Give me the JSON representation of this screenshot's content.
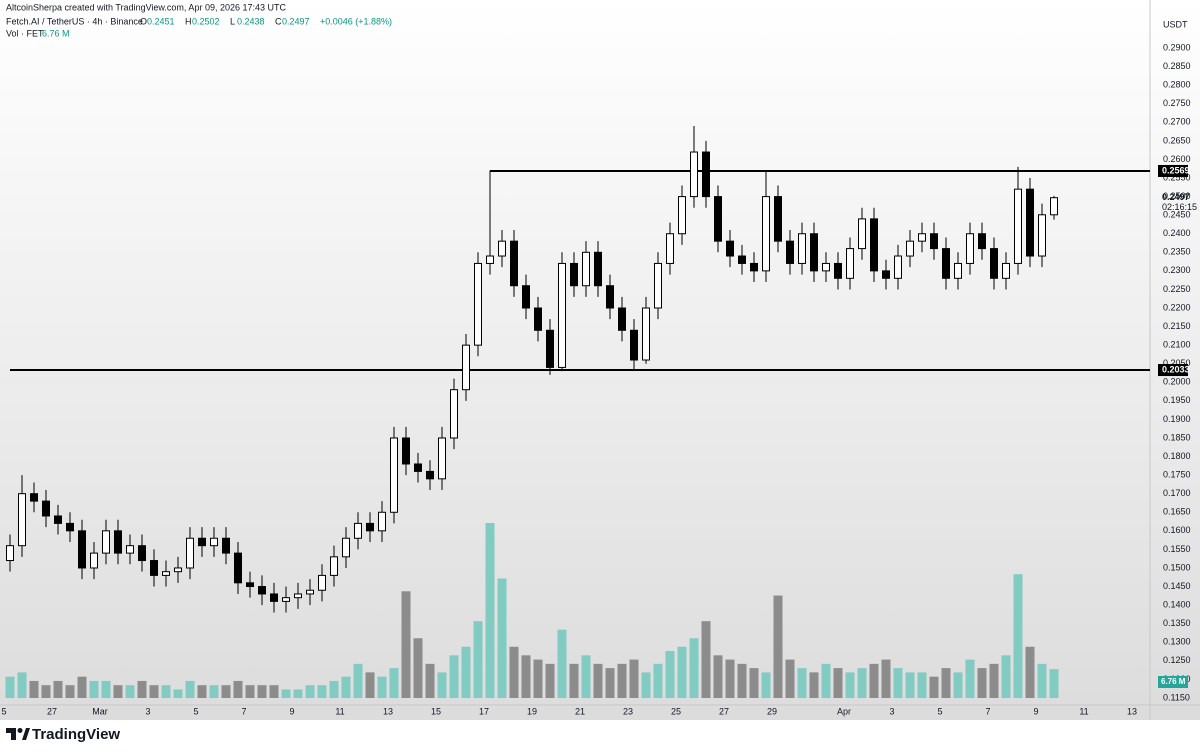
{
  "header": {
    "credit": "AltcoinSherpa created with TradingView.com, Apr 09, 2026 17:43 UTC",
    "symbol": "Fetch.AI / TetherUS · 4h · Binance",
    "ohlc": [
      {
        "label": "O",
        "value": 0.2451
      },
      {
        "label": "H",
        "value": 0.2502
      },
      {
        "label": "L",
        "value": 0.2438
      },
      {
        "label": "C",
        "value": 0.2497
      }
    ],
    "change": "+0.0046 (+1.88%)",
    "vol_label": "Vol · FET",
    "vol_value": "6.76 M",
    "currency": "USDT",
    "countdown": "02:16:15"
  },
  "chart_data": {
    "type": "candlestick",
    "grid": false,
    "up_color": "#ffffff",
    "down_color": "#000000",
    "wick_color": "#000000",
    "volume_up_color": "#82cbc3",
    "volume_down_color": "#8c8c8c",
    "level_color": "#000000",
    "ylim": [
      0.1131,
      0.2989
    ],
    "yticks": [
      {
        "value": 0.115,
        "label": "0.1150"
      },
      {
        "value": 0.12,
        "label": "0.1200"
      },
      {
        "value": 0.125,
        "label": "0.1250"
      },
      {
        "value": 0.13,
        "label": "0.1300"
      },
      {
        "value": 0.135,
        "label": "0.1350"
      },
      {
        "value": 0.14,
        "label": "0.1400"
      },
      {
        "value": 0.145,
        "label": "0.1450"
      },
      {
        "value": 0.15,
        "label": "0.1500"
      },
      {
        "value": 0.155,
        "label": "0.1550"
      },
      {
        "value": 0.16,
        "label": "0.1600"
      },
      {
        "value": 0.165,
        "label": "0.1650"
      },
      {
        "value": 0.17,
        "label": "0.1700"
      },
      {
        "value": 0.175,
        "label": "0.1750"
      },
      {
        "value": 0.18,
        "label": "0.1800"
      },
      {
        "value": 0.185,
        "label": "0.1850"
      },
      {
        "value": 0.19,
        "label": "0.1900"
      },
      {
        "value": 0.195,
        "label": "0.1950"
      },
      {
        "value": 0.2,
        "label": "0.2000"
      },
      {
        "value": 0.205,
        "label": "0.2050"
      },
      {
        "value": 0.21,
        "label": "0.2100"
      },
      {
        "value": 0.215,
        "label": "0.2150"
      },
      {
        "value": 0.22,
        "label": "0.2200"
      },
      {
        "value": 0.225,
        "label": "0.2250"
      },
      {
        "value": 0.23,
        "label": "0.2300"
      },
      {
        "value": 0.235,
        "label": "0.2350"
      },
      {
        "value": 0.24,
        "label": "0.2400"
      },
      {
        "value": 0.245,
        "label": "0.2450"
      },
      {
        "value": 0.25,
        "label": "0.2500"
      },
      {
        "value": 0.255,
        "label": "0.2550"
      },
      {
        "value": 0.26,
        "label": "0.2600"
      },
      {
        "value": 0.265,
        "label": "0.2650"
      },
      {
        "value": 0.27,
        "label": "0.2700"
      },
      {
        "value": 0.275,
        "label": "0.2750"
      },
      {
        "value": 0.28,
        "label": "0.2800"
      },
      {
        "value": 0.285,
        "label": "0.2850"
      },
      {
        "value": 0.29,
        "label": "0.2900"
      }
    ],
    "categories": [
      "5",
      null,
      null,
      null,
      "27",
      null,
      null,
      null,
      "Mar",
      null,
      null,
      null,
      "3",
      null,
      null,
      null,
      "5",
      null,
      null,
      null,
      "7",
      null,
      null,
      null,
      "9",
      null,
      null,
      null,
      "11",
      null,
      null,
      null,
      "13",
      null,
      null,
      null,
      "15",
      null,
      null,
      null,
      "17",
      null,
      null,
      null,
      "19",
      null,
      null,
      null,
      "21",
      null,
      null,
      null,
      "23",
      null,
      null,
      null,
      "25",
      null,
      null,
      null,
      "27",
      null,
      null,
      null,
      "29",
      null,
      null,
      null,
      null,
      null,
      "Apr",
      null,
      null,
      null,
      "3",
      null,
      null,
      null,
      "5",
      null,
      null,
      null,
      "7",
      null,
      null,
      null,
      "9",
      null,
      null,
      null,
      "11",
      null,
      null,
      null,
      "13",
      null
    ],
    "open": [
      0.152,
      0.156,
      0.17,
      0.168,
      0.164,
      0.162,
      0.16,
      0.15,
      0.154,
      0.16,
      0.154,
      0.156,
      0.152,
      0.148,
      0.149,
      0.15,
      0.158,
      0.156,
      0.158,
      0.154,
      0.146,
      0.145,
      0.143,
      0.141,
      0.142,
      0.143,
      0.144,
      0.148,
      0.153,
      0.158,
      0.162,
      0.16,
      0.165,
      0.185,
      0.178,
      0.176,
      0.174,
      0.185,
      0.198,
      0.21,
      0.232,
      0.234,
      0.238,
      0.226,
      0.22,
      0.214,
      0.204,
      0.232,
      0.226,
      0.235,
      0.226,
      0.22,
      0.214,
      0.206,
      0.22,
      0.232,
      0.24,
      0.25,
      0.262,
      0.25,
      0.238,
      0.234,
      0.232,
      0.23,
      0.25,
      0.238,
      0.232,
      0.24,
      0.23,
      0.232,
      0.228,
      0.236,
      0.244,
      0.23,
      0.228,
      0.234,
      0.238,
      0.24,
      0.236,
      0.228,
      0.232,
      0.24,
      0.236,
      0.228,
      0.232,
      0.252,
      0.234,
      0.2451,
      null,
      null,
      null,
      null,
      null,
      null,
      null,
      null
    ],
    "high": [
      0.159,
      0.175,
      0.173,
      0.171,
      0.167,
      0.165,
      0.163,
      0.157,
      0.163,
      0.163,
      0.159,
      0.159,
      0.155,
      0.152,
      0.153,
      0.161,
      0.161,
      0.161,
      0.161,
      0.157,
      0.149,
      0.148,
      0.146,
      0.145,
      0.146,
      0.147,
      0.151,
      0.156,
      0.161,
      0.165,
      0.165,
      0.168,
      0.188,
      0.188,
      0.181,
      0.179,
      0.188,
      0.201,
      0.213,
      0.235,
      0.257,
      0.241,
      0.241,
      0.229,
      0.223,
      0.217,
      0.235,
      0.235,
      0.238,
      0.238,
      0.229,
      0.223,
      0.217,
      0.223,
      0.235,
      0.243,
      0.253,
      0.269,
      0.265,
      0.253,
      0.241,
      0.237,
      0.235,
      0.257,
      0.253,
      0.241,
      0.243,
      0.243,
      0.235,
      0.235,
      0.239,
      0.247,
      0.247,
      0.233,
      0.237,
      0.241,
      0.243,
      0.243,
      0.239,
      0.235,
      0.243,
      0.243,
      0.239,
      0.235,
      0.258,
      0.255,
      0.2481,
      0.2502,
      null,
      null,
      null,
      null,
      null,
      null,
      null,
      null
    ],
    "low": [
      0.149,
      0.153,
      0.165,
      0.161,
      0.159,
      0.157,
      0.147,
      0.147,
      0.151,
      0.151,
      0.151,
      0.149,
      0.145,
      0.145,
      0.146,
      0.147,
      0.153,
      0.153,
      0.151,
      0.143,
      0.142,
      0.14,
      0.138,
      0.138,
      0.139,
      0.14,
      0.141,
      0.145,
      0.15,
      0.155,
      0.157,
      0.157,
      0.162,
      0.175,
      0.173,
      0.171,
      0.171,
      0.182,
      0.195,
      0.207,
      0.229,
      0.231,
      0.223,
      0.217,
      0.211,
      0.202,
      0.203,
      0.223,
      0.223,
      0.223,
      0.217,
      0.211,
      0.2033,
      0.205,
      0.217,
      0.229,
      0.237,
      0.247,
      0.247,
      0.235,
      0.231,
      0.229,
      0.227,
      0.227,
      0.235,
      0.229,
      0.229,
      0.227,
      0.227,
      0.225,
      0.225,
      0.233,
      0.227,
      0.225,
      0.225,
      0.231,
      0.235,
      0.233,
      0.225,
      0.225,
      0.229,
      0.233,
      0.225,
      0.225,
      0.229,
      0.231,
      0.231,
      0.2438,
      null,
      null,
      null,
      null,
      null,
      null,
      null,
      null
    ],
    "close": [
      0.156,
      0.17,
      0.168,
      0.164,
      0.162,
      0.16,
      0.15,
      0.154,
      0.16,
      0.154,
      0.156,
      0.152,
      0.148,
      0.149,
      0.15,
      0.158,
      0.156,
      0.158,
      0.154,
      0.146,
      0.145,
      0.143,
      0.141,
      0.142,
      0.143,
      0.144,
      0.148,
      0.153,
      0.158,
      0.162,
      0.16,
      0.165,
      0.185,
      0.178,
      0.176,
      0.174,
      0.185,
      0.198,
      0.21,
      0.232,
      0.234,
      0.238,
      0.226,
      0.22,
      0.214,
      0.204,
      0.232,
      0.226,
      0.235,
      0.226,
      0.22,
      0.214,
      0.206,
      0.22,
      0.232,
      0.24,
      0.25,
      0.262,
      0.25,
      0.238,
      0.234,
      0.232,
      0.23,
      0.25,
      0.238,
      0.232,
      0.24,
      0.23,
      0.232,
      0.228,
      0.236,
      0.244,
      0.23,
      0.228,
      0.234,
      0.238,
      0.24,
      0.236,
      0.228,
      0.232,
      0.24,
      0.236,
      0.228,
      0.232,
      0.252,
      0.234,
      0.2451,
      0.2497,
      null,
      null,
      null,
      null,
      null,
      null,
      null,
      null
    ],
    "volume": [
      5,
      6,
      4,
      3,
      4,
      3,
      5,
      4,
      4,
      3,
      3,
      4,
      3,
      3,
      2,
      4,
      3,
      3,
      3,
      4,
      3,
      3,
      3,
      2,
      2,
      3,
      3,
      4,
      5,
      8,
      6,
      5,
      7,
      25,
      14,
      8,
      6,
      10,
      12,
      18,
      41,
      28,
      12,
      10,
      9,
      8,
      16,
      8,
      10,
      8,
      7,
      8,
      9,
      6,
      8,
      11,
      12,
      14,
      18,
      10,
      9,
      8,
      7,
      6,
      24,
      9,
      7,
      6,
      8,
      7,
      6,
      7,
      8,
      9,
      7,
      6,
      6,
      5,
      7,
      6,
      9,
      7,
      8,
      10,
      29,
      12,
      8,
      6.76,
      null,
      null,
      null,
      null,
      null,
      null,
      null,
      null
    ],
    "levels": [
      0.2569,
      0.2033
    ],
    "last_price": 0.2497
  },
  "footer": {
    "logo": "TradingView"
  }
}
